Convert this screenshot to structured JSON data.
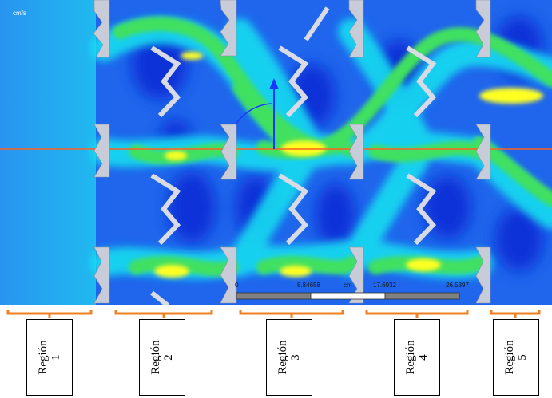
{
  "plot": {
    "unit": "cm/s",
    "colors": {
      "background": "#1f6ff0",
      "deep": "#1030d8",
      "cyan": "#18dcf0",
      "green": "#40e060",
      "yellow": "#ffff20",
      "axis": "#ff6020",
      "arrow": "#1838ff",
      "baffle": "#c8ccd8"
    }
  },
  "scale_bar": {
    "ticks": [
      "0",
      "8.84658",
      "cm",
      "17.6932",
      "26.5397"
    ],
    "colors": [
      "#ffffff",
      "#808080"
    ]
  },
  "regions": [
    {
      "label": "Región\n1"
    },
    {
      "label": "Región\n2"
    },
    {
      "label": "Región\n3"
    },
    {
      "label": "Región\n4"
    },
    {
      "label": "Región\n5"
    }
  ],
  "brace_color": "#f07f22"
}
